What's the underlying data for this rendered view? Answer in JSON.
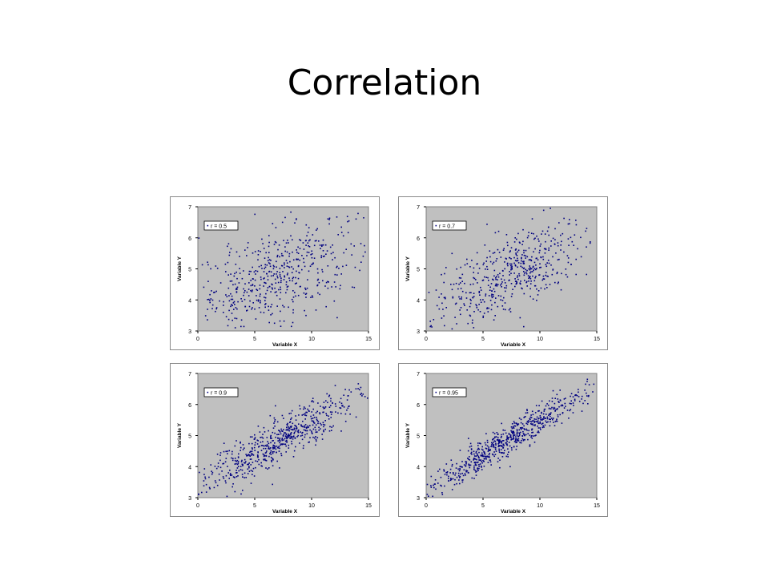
{
  "slide": {
    "title": "Correlation"
  },
  "colors": {
    "plot_area": "#c0c0c0",
    "marker": "#000080",
    "frame": "#8a8a8a"
  },
  "chart_data": [
    {
      "type": "scatter",
      "legend": "r = 0.5",
      "legend_position": "top-left",
      "xlabel": "Variable X",
      "ylabel": "Variable Y",
      "xlim": [
        0,
        15
      ],
      "ylim": [
        3,
        7
      ],
      "xticks": [
        0,
        5,
        10,
        15
      ],
      "yticks": [
        3,
        4,
        5,
        6,
        7
      ],
      "grid": false,
      "n_points": 500,
      "correlation": 0.5
    },
    {
      "type": "scatter",
      "legend": "r = 0.7",
      "legend_position": "top-left",
      "xlabel": "Variable X",
      "ylabel": "Variable Y",
      "xlim": [
        0,
        15
      ],
      "ylim": [
        3,
        7
      ],
      "xticks": [
        0,
        5,
        10,
        15
      ],
      "yticks": [
        3,
        4,
        5,
        6,
        7
      ],
      "grid": false,
      "n_points": 500,
      "correlation": 0.7
    },
    {
      "type": "scatter",
      "legend": "r = 0.9",
      "legend_position": "top-left",
      "xlabel": "Variable X",
      "ylabel": "Variable Y",
      "xlim": [
        0,
        15
      ],
      "ylim": [
        3,
        7
      ],
      "xticks": [
        0,
        5,
        10,
        15
      ],
      "yticks": [
        3,
        4,
        5,
        6,
        7
      ],
      "grid": false,
      "n_points": 600,
      "correlation": 0.9
    },
    {
      "type": "scatter",
      "legend": "r = 0.95",
      "legend_position": "top-left",
      "xlabel": "Variable X",
      "ylabel": "Variable Y",
      "xlim": [
        0,
        15
      ],
      "ylim": [
        3,
        7
      ],
      "xticks": [
        0,
        5,
        10,
        15
      ],
      "yticks": [
        3,
        4,
        5,
        6,
        7
      ],
      "grid": false,
      "n_points": 650,
      "correlation": 0.95
    }
  ]
}
